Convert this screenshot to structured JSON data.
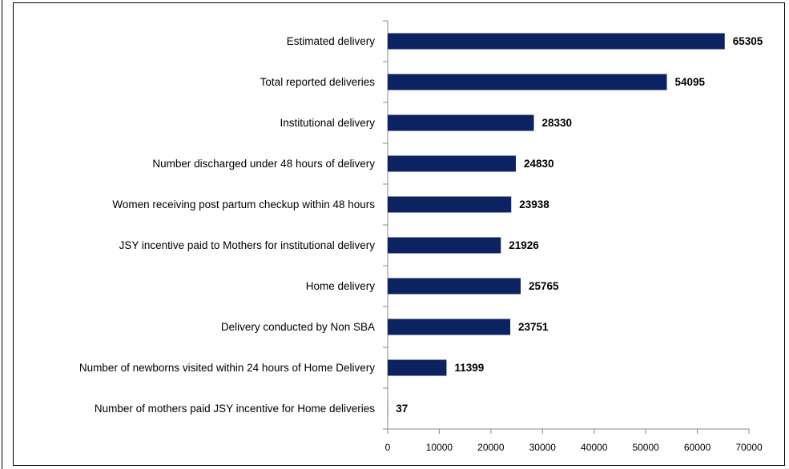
{
  "chart_data": {
    "type": "barh",
    "categories": [
      "Estimated delivery",
      "Total reported deliveries",
      "Institutional delivery",
      "Number discharged under 48 hours of delivery",
      "Women receiving post partum checkup within 48 hours",
      "JSY incentive paid to Mothers for institutional delivery",
      "Home delivery",
      "Delivery conducted by Non SBA",
      "Number of newborns visited within 24 hours of Home Delivery",
      "Number of mothers paid JSY incentive for Home deliveries"
    ],
    "values": [
      65305,
      54095,
      28330,
      24830,
      23938,
      21926,
      25765,
      23751,
      11399,
      37
    ],
    "color": "#0d2260",
    "xlim": [
      0,
      70000
    ],
    "xticks": [
      0,
      10000,
      20000,
      30000,
      40000,
      50000,
      60000,
      70000
    ]
  }
}
